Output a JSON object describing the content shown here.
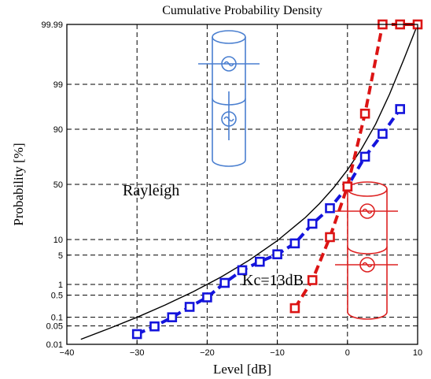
{
  "chart_data": {
    "type": "line",
    "title": "Cumulative Probability Density",
    "xlabel": "Level [dB]",
    "ylabel": "Probability [%]",
    "xlim": [
      -40,
      10
    ],
    "x_ticks": [
      -40,
      -30,
      -20,
      -10,
      0,
      10
    ],
    "y_scale": "probability",
    "y_ticks": [
      0.01,
      0.05,
      0.1,
      0.5,
      1,
      5,
      10,
      50,
      90,
      99,
      99.99
    ],
    "y_tick_labels": [
      "0.01",
      "0.05",
      "0.1",
      "0.5",
      "1",
      "5",
      "10",
      "50",
      "90",
      "99",
      "99.99"
    ],
    "grid": true,
    "annotations": [
      "Rayleigh",
      "Kc=13dB"
    ],
    "series": [
      {
        "color": "#000000",
        "style": "solid",
        "x": [
          -38,
          -34,
          -30,
          -26,
          -22,
          -18,
          -14,
          -10,
          -6,
          -4,
          -2,
          0,
          2,
          4,
          6,
          8,
          10
        ],
        "y": [
          0.0158,
          0.04,
          0.1,
          0.251,
          0.629,
          1.57,
          3.9,
          9.5,
          22.1,
          32.7,
          46.7,
          63.2,
          79.5,
          91.9,
          98.2,
          99.81,
          99.99
        ]
      },
      {
        "color": "#1414dc",
        "style": "dashed-square-markers",
        "x": [
          -30,
          -27.5,
          -25,
          -22.5,
          -20,
          -17.5,
          -15,
          -12.5,
          -10,
          -7.5,
          -5,
          -2.5,
          0,
          2.5,
          5,
          7.5
        ],
        "y": [
          0.025,
          0.048,
          0.1,
          0.22,
          0.43,
          1.1,
          2.3,
          3.6,
          5.2,
          8.5,
          18,
          29,
          48,
          74,
          88,
          96
        ]
      },
      {
        "color": "#dc1414",
        "style": "dashed-square-markers",
        "x": [
          -7.5,
          -5,
          -2.5,
          0,
          2.5,
          5,
          7.5,
          10
        ],
        "y": [
          0.2,
          1.3,
          11,
          48,
          95,
          99.99,
          99.99,
          99.99
        ]
      }
    ]
  }
}
